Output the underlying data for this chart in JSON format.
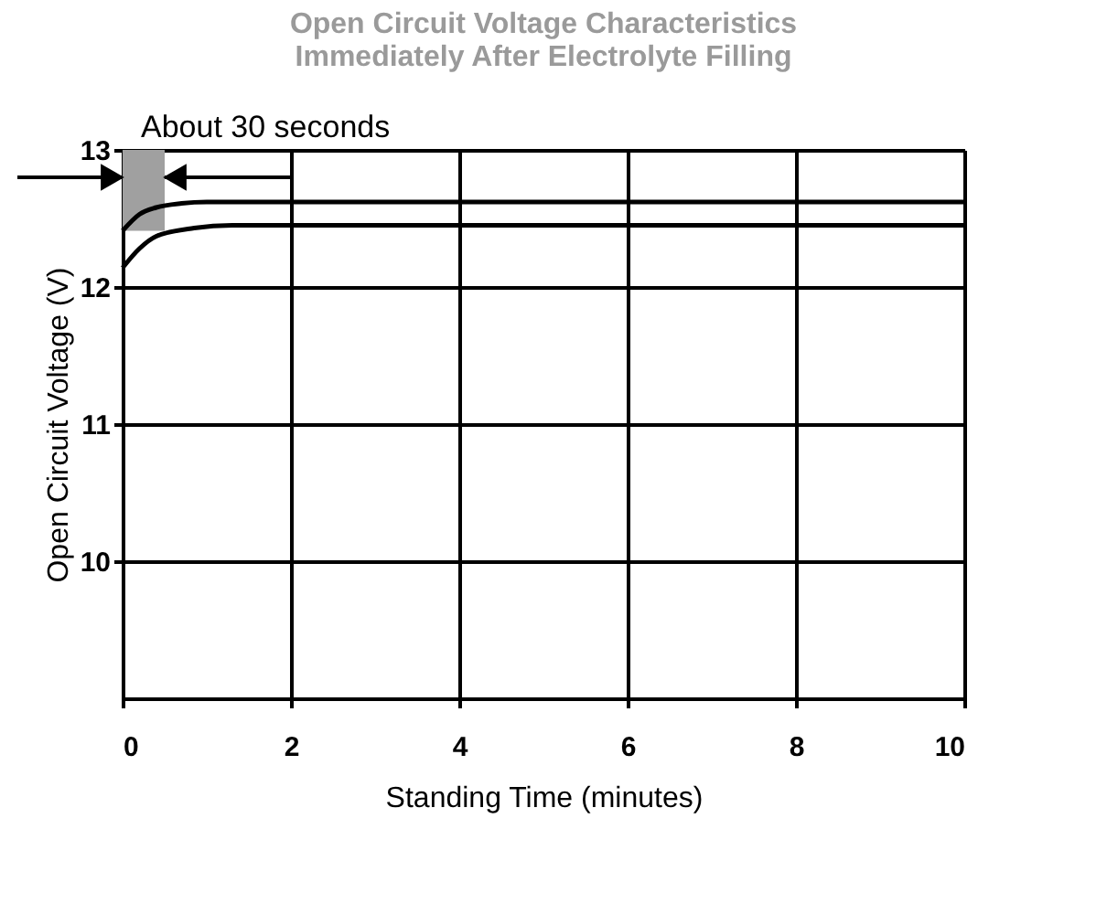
{
  "chart_data": {
    "type": "line",
    "title": [
      "Open Circuit Voltage Characteristics",
      "Immediately After Electrolyte Filling"
    ],
    "xlabel": "Standing Time (minutes)",
    "ylabel": "Open Circuit Voltage (V)",
    "series": [
      {
        "color": "#000000",
        "x": [
          0,
          0.2,
          0.4,
          0.7,
          1.0,
          10
        ],
        "values": [
          12.41,
          12.53,
          12.58,
          12.61,
          12.62,
          12.62
        ]
      },
      {
        "color": "#000000",
        "x": [
          0,
          0.2,
          0.4,
          0.85,
          1.3,
          10
        ],
        "values": [
          12.14,
          12.28,
          12.37,
          12.43,
          12.45,
          12.45
        ]
      }
    ],
    "xlim": [
      0,
      10
    ],
    "ylim": [
      9,
      13
    ],
    "xticks": [
      0,
      2,
      4,
      6,
      8,
      10
    ],
    "yticks": [
      10,
      11,
      12,
      13
    ],
    "bands": [
      {
        "axis": "x",
        "from": 0,
        "to": 0.5,
        "label": "About 30 seconds",
        "color": "#a0a0a0"
      }
    ],
    "grid": true,
    "marker": "none",
    "line_style": "solid"
  }
}
